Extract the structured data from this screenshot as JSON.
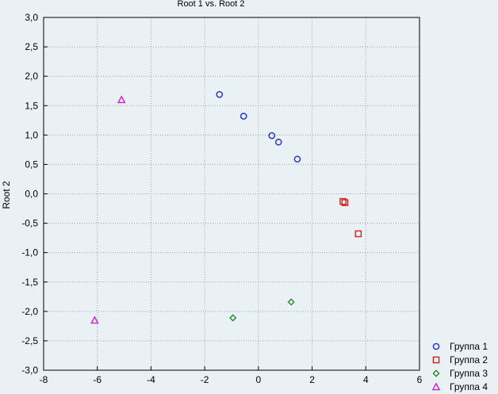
{
  "chart_data": {
    "type": "scatter",
    "title": "Root 1 vs. Root 2",
    "xlabel": "",
    "ylabel": "Root 2",
    "xlim": [
      -8,
      6
    ],
    "ylim": [
      -3.0,
      3.0
    ],
    "xticks": [
      -8,
      -6,
      -4,
      -2,
      0,
      2,
      4,
      6
    ],
    "xtick_labels": [
      "-8",
      "-6",
      "-4",
      "-2",
      "0",
      "2",
      "4",
      "6"
    ],
    "yticks": [
      -3.0,
      -2.5,
      -2.0,
      -1.5,
      -1.0,
      -0.5,
      0.0,
      0.5,
      1.0,
      1.5,
      2.0,
      2.5,
      3.0
    ],
    "ytick_labels": [
      "-3,0",
      "-2,5",
      "-2,0",
      "-1,5",
      "-1,0",
      "-0,5",
      "0,0",
      "0,5",
      "1,0",
      "1,5",
      "2,0",
      "2,5",
      "3,0"
    ],
    "grid": true,
    "legend_position": "bottom-right",
    "series": [
      {
        "name": "Группа 1",
        "marker": "circle",
        "color": "#1f2fcf",
        "points": [
          [
            -1.45,
            1.69
          ],
          [
            -0.55,
            1.32
          ],
          [
            0.5,
            0.99
          ],
          [
            0.75,
            0.88
          ],
          [
            1.45,
            0.59
          ]
        ]
      },
      {
        "name": "Группа 2",
        "marker": "square",
        "color": "#d42020",
        "points": [
          [
            3.15,
            -0.13
          ],
          [
            3.22,
            -0.15
          ],
          [
            3.72,
            -0.68
          ]
        ]
      },
      {
        "name": "Группа 3",
        "marker": "diamond",
        "color": "#2a8a2a",
        "points": [
          [
            -0.95,
            -2.11
          ],
          [
            1.22,
            -1.84
          ]
        ]
      },
      {
        "name": "Группа 4",
        "marker": "triangle",
        "color": "#d020d0",
        "points": [
          [
            -5.1,
            1.6
          ],
          [
            -6.1,
            -2.15
          ]
        ]
      }
    ]
  }
}
